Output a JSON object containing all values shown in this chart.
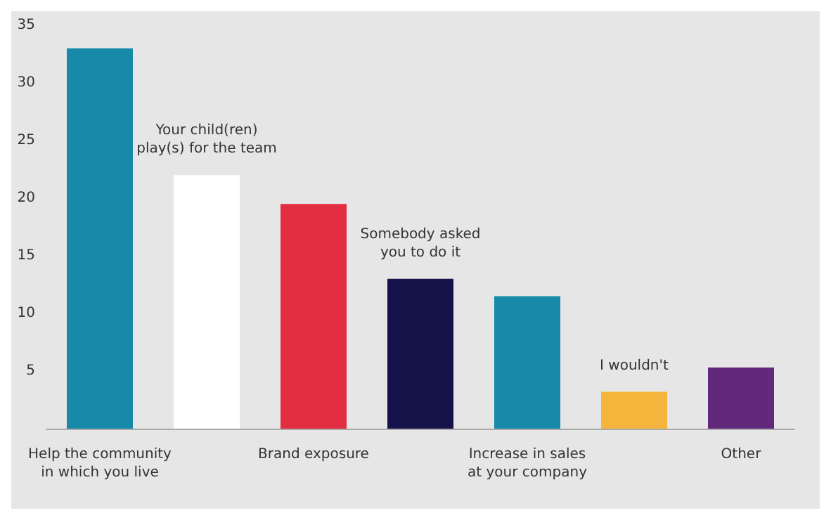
{
  "chart_data": {
    "type": "bar",
    "categories": [
      "Help the community\nin which you live",
      "Your child(ren)\nplay(s) for the team",
      "Brand exposure",
      "Somebody asked\nyou to do it",
      "Increase in sales\nat your company",
      "I wouldn't",
      "Other"
    ],
    "values": [
      33,
      22,
      19.5,
      13,
      11.5,
      3.2,
      5.3
    ],
    "colors": [
      "#168aa8",
      "#ffffff",
      "#e32d41",
      "#15134a",
      "#168aa8",
      "#f5b53d",
      "#62287c"
    ],
    "ylim": [
      0,
      35
    ],
    "yticks": [
      5,
      10,
      15,
      20,
      25,
      30,
      35
    ],
    "grid": false
  }
}
